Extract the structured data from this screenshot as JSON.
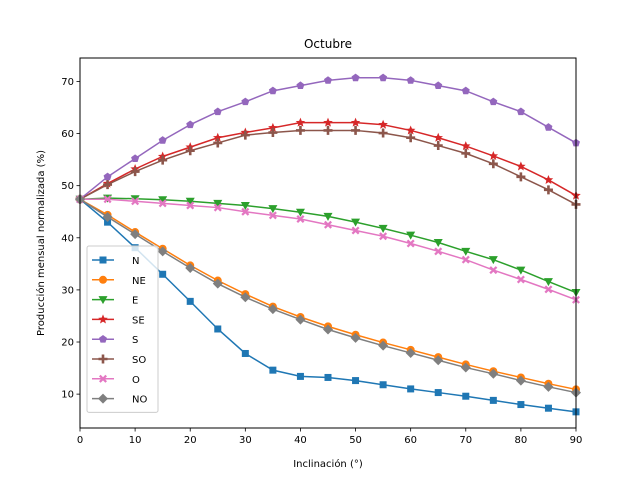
{
  "chart_data": {
    "type": "line",
    "title": "Octubre",
    "xlabel": "Inclinación (°)",
    "ylabel": "Producción mensual normalizada (%)",
    "xlim": [
      0,
      90
    ],
    "ylim": [
      3.5,
      74.5
    ],
    "xticks": [
      0,
      10,
      20,
      30,
      40,
      50,
      60,
      70,
      80,
      90
    ],
    "yticks": [
      10,
      20,
      30,
      40,
      50,
      60,
      70
    ],
    "grid": false,
    "legend_position": "lower-left",
    "x": [
      0,
      5,
      10,
      15,
      20,
      25,
      30,
      35,
      40,
      45,
      50,
      55,
      60,
      65,
      70,
      75,
      80,
      85,
      90
    ],
    "series": [
      {
        "name": "N",
        "color": "#1f77b4",
        "marker": "square",
        "values": [
          47.4,
          43.0,
          38.1,
          33.0,
          27.8,
          22.5,
          17.8,
          14.6,
          13.4,
          13.2,
          12.6,
          11.8,
          11.0,
          10.3,
          9.6,
          8.8,
          8.0,
          7.3,
          6.6
        ]
      },
      {
        "name": "NE",
        "color": "#ff7f0e",
        "marker": "circle",
        "values": [
          47.4,
          44.4,
          41.1,
          37.9,
          34.7,
          31.8,
          29.2,
          26.8,
          24.8,
          23.0,
          21.4,
          19.9,
          18.5,
          17.1,
          15.7,
          14.4,
          13.2,
          12.0,
          10.9
        ]
      },
      {
        "name": "E",
        "color": "#2ca02c",
        "marker": "triangle-down",
        "values": [
          47.4,
          47.6,
          47.5,
          47.3,
          47.0,
          46.6,
          46.2,
          45.6,
          44.9,
          44.1,
          43.0,
          41.8,
          40.5,
          39.1,
          37.4,
          35.8,
          33.8,
          31.6,
          29.5
        ]
      },
      {
        "name": "SE",
        "color": "#d62728",
        "marker": "star",
        "values": [
          47.4,
          50.4,
          53.2,
          55.6,
          57.4,
          59.2,
          60.2,
          61.1,
          62.1,
          62.1,
          62.1,
          61.7,
          60.6,
          59.2,
          57.6,
          55.7,
          53.7,
          51.1,
          48.1
        ]
      },
      {
        "name": "S",
        "color": "#9467bd",
        "marker": "pentagon",
        "values": [
          47.4,
          51.7,
          55.2,
          58.7,
          61.7,
          64.2,
          66.1,
          68.2,
          69.2,
          70.2,
          70.7,
          70.7,
          70.2,
          69.2,
          68.2,
          66.1,
          64.2,
          61.2,
          58.2
        ]
      },
      {
        "name": "SO",
        "color": "#8c564b",
        "marker": "plus",
        "values": [
          47.4,
          50.2,
          52.7,
          54.9,
          56.7,
          58.2,
          59.7,
          60.2,
          60.6,
          60.6,
          60.6,
          60.1,
          59.2,
          57.7,
          56.2,
          54.2,
          51.7,
          49.2,
          46.4
        ]
      },
      {
        "name": "O",
        "color": "#e377c2",
        "marker": "x",
        "values": [
          47.4,
          47.4,
          47.0,
          46.6,
          46.2,
          45.8,
          45.0,
          44.3,
          43.6,
          42.5,
          41.4,
          40.3,
          38.9,
          37.4,
          35.8,
          33.8,
          32.0,
          30.1,
          28.1
        ]
      },
      {
        "name": "NO",
        "color": "#7f7f7f",
        "marker": "diamond",
        "values": [
          47.4,
          44.0,
          40.7,
          37.4,
          34.2,
          31.2,
          28.6,
          26.3,
          24.3,
          22.4,
          20.8,
          19.3,
          17.9,
          16.5,
          15.1,
          13.9,
          12.6,
          11.4,
          10.3
        ]
      }
    ]
  }
}
